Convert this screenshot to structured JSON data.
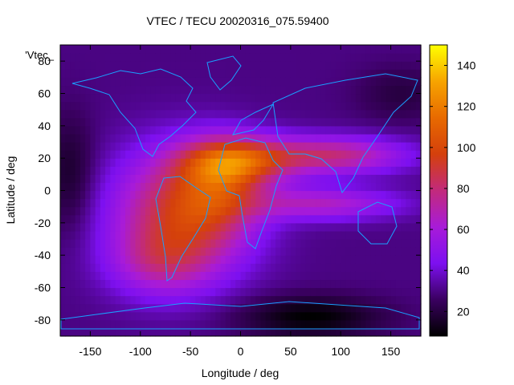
{
  "chart_data": {
    "type": "heatmap",
    "title": "VTEC / TECU 20020316_075.59400",
    "xlabel": "Longitude / deg",
    "ylabel": "Latitude / deg",
    "xlim": [
      -180,
      180
    ],
    "ylim": [
      -90,
      90
    ],
    "x_ticks": [
      -150,
      -100,
      -50,
      0,
      50,
      100,
      150
    ],
    "y_ticks": [
      -80,
      -60,
      -40,
      -20,
      0,
      20,
      40,
      60,
      80
    ],
    "legend_label": "'Vtec_",
    "colorbar": {
      "range": [
        8,
        150
      ],
      "ticks": [
        20,
        40,
        60,
        80,
        100,
        120,
        140
      ],
      "colormap": [
        "#000000",
        "#3a0060",
        "#7d10f0",
        "#a81bd8",
        "#c22a7c",
        "#d4400c",
        "#e86a00",
        "#f7a400",
        "#ffff00"
      ]
    },
    "field_model": {
      "background_tecu": 30,
      "blobs": [
        {
          "lon": -5,
          "lat": 18,
          "sigma_lon": 38,
          "sigma_lat": 11,
          "tecu": 60
        },
        {
          "lon": -60,
          "lat": -15,
          "sigma_lon": 48,
          "sigma_lat": 27,
          "tecu": 60
        },
        {
          "lon": 90,
          "lat": 22,
          "sigma_lon": 52,
          "sigma_lat": 8,
          "tecu": 48
        },
        {
          "lon": 80,
          "lat": -8,
          "sigma_lon": 55,
          "sigma_lat": 7,
          "tecu": 35
        },
        {
          "lon": -20,
          "lat": 0,
          "sigma_lon": 30,
          "sigma_lat": 20,
          "tecu": 28
        },
        {
          "lon": -80,
          "lat": -45,
          "sigma_lon": 35,
          "sigma_lat": 14,
          "tecu": 24
        }
      ],
      "lows": [
        {
          "lon": 70,
          "lat": -78,
          "sigma_lon": 50,
          "sigma_lat": 9,
          "tecu": -22
        },
        {
          "lon": -170,
          "lat": 10,
          "sigma_lon": 18,
          "sigma_lat": 25,
          "tecu": -15
        },
        {
          "lon": 160,
          "lat": 60,
          "sigma_lon": 30,
          "sigma_lat": 12,
          "tecu": -10
        }
      ],
      "peak_tecu": 150
    }
  }
}
